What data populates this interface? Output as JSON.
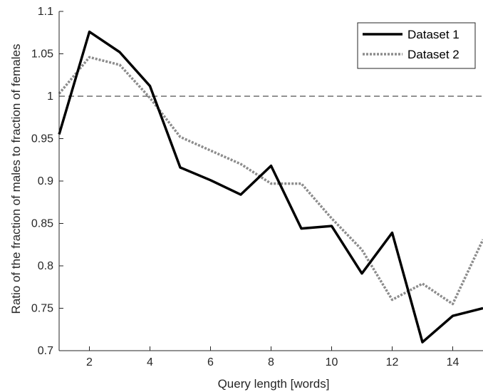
{
  "chart_data": {
    "type": "line",
    "title": "",
    "xlabel": "Query length [words]",
    "ylabel": "Ratio of the fraction of males to fraction of females",
    "xlim": [
      1,
      15
    ],
    "ylim": [
      0.7,
      1.1
    ],
    "xticks": [
      2,
      4,
      6,
      8,
      10,
      12,
      14
    ],
    "yticks": [
      0.7,
      0.75,
      0.8,
      0.85,
      0.9,
      0.95,
      1,
      1.05,
      1.1
    ],
    "ytick_labels": [
      "0.7",
      "0.75",
      "0.8",
      "0.85",
      "0.9",
      "0.95",
      "1",
      "1.05",
      "1.1"
    ],
    "reference_line": {
      "y": 1,
      "style": "dashed"
    },
    "legend_position": "top-right",
    "grid": false,
    "x": [
      1,
      2,
      3,
      4,
      5,
      6,
      7,
      8,
      9,
      10,
      11,
      12,
      13,
      14,
      15
    ],
    "series": [
      {
        "name": "Dataset 1",
        "style": "solid",
        "color": "#000000",
        "values": [
          0.955,
          1.076,
          1.052,
          1.012,
          0.916,
          0.901,
          0.884,
          0.918,
          0.844,
          0.847,
          0.791,
          0.839,
          0.71,
          0.741,
          0.75
        ]
      },
      {
        "name": "Dataset 2",
        "style": "dotted",
        "color": "#8c8c8c",
        "values": [
          1.003,
          1.046,
          1.037,
          0.998,
          0.952,
          0.936,
          0.92,
          0.897,
          0.897,
          0.856,
          0.819,
          0.76,
          0.779,
          0.755,
          0.831
        ]
      }
    ]
  }
}
